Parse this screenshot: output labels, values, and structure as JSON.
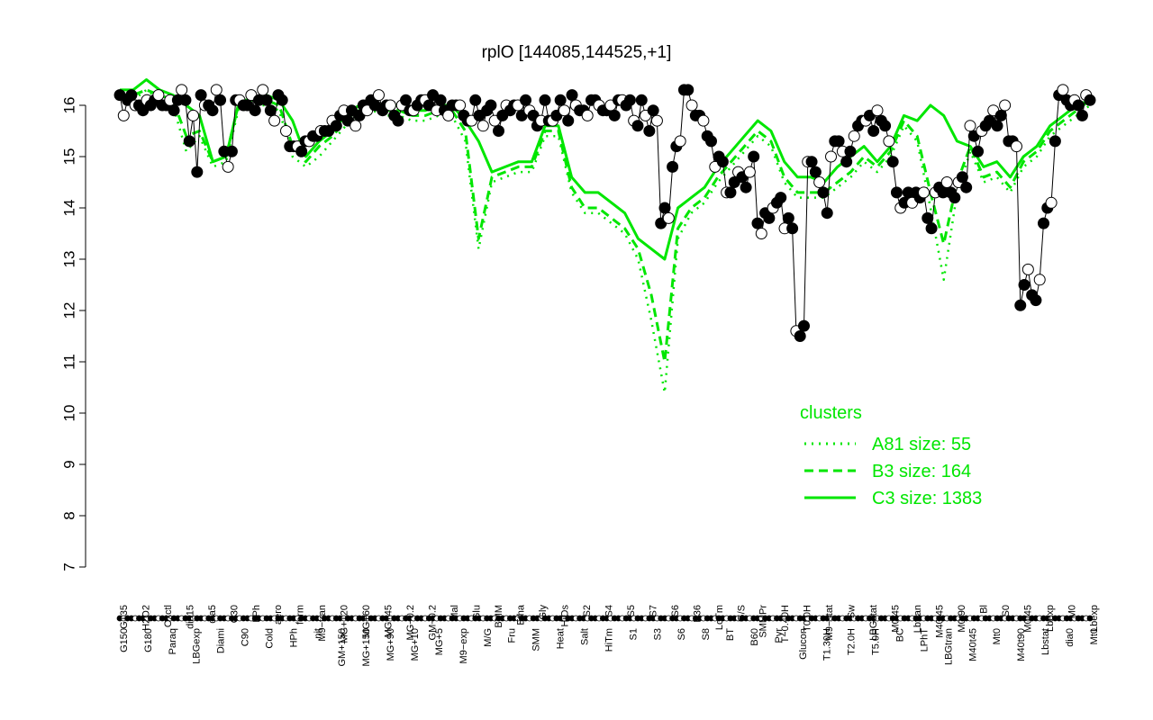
{
  "colors": {
    "axis": "#000000",
    "cluster": "#00e600",
    "point_fill_dark": "#000000",
    "point_fill_light": "#ffffff"
  },
  "chart_data": {
    "type": "line",
    "title": "rplO [144085,144525,+1]",
    "xlabel": "",
    "ylabel": "",
    "ylim": [
      7,
      16.5
    ],
    "yticks": [
      7,
      8,
      9,
      10,
      11,
      12,
      13,
      14,
      15,
      16
    ],
    "grid": false,
    "legend": {
      "title": "clusters",
      "position": "right",
      "entries": [
        {
          "label": "A81 size: 55",
          "style": "dotted"
        },
        {
          "label": "B3 size: 164",
          "style": "dashed"
        },
        {
          "label": "C3 size: 1383",
          "style": "solid"
        }
      ]
    },
    "x_tick_labels_top": [
      "G135",
      "H2O2",
      "Oxctl",
      "dia15",
      "dia5",
      "C30",
      "LPh",
      "aero",
      "ferm",
      "M9−tran",
      "MG+120",
      "MG+60",
      "MG+45",
      "MG−0.2",
      "GM−0.2",
      "Mal",
      "Glu",
      "BMM",
      "Etha",
      "Gly",
      "HiOs",
      "S2",
      "S4",
      "S5",
      "S7",
      "S6",
      "B36",
      "LoTm",
      "G/S",
      "SMMPr",
      "T−0.40H",
      "T0.0H",
      "M9−stat",
      "Sw",
      "LBGstat",
      "M0t45",
      "Lbtran",
      "M40t45",
      "M0t90",
      "Bl",
      "S0",
      "M0t45",
      "Lbexp",
      "M0",
      "Lbexp"
    ],
    "x_tick_labels_bottom": [
      "G150",
      "G180",
      "Paraq",
      "LBGexp",
      "Diami",
      "C90",
      "Cold",
      "HPh",
      "nit",
      "GM+150",
      "MG+150",
      "MG+90",
      "MG+10",
      "MG+5",
      "M9−exp",
      "M/G",
      "Fru",
      "SMM",
      "Heat",
      "Salt",
      "HiTm",
      "S1",
      "S3",
      "S6",
      "S8",
      "BT",
      "B60",
      "Pyr",
      "Glucon",
      "T1.30H",
      "T2.0H",
      "T5.0H",
      "BC",
      "LPhT",
      "LBGtran",
      "M40t45",
      "Mt0",
      "M40t90",
      "Lbstat",
      "dia0",
      "Mt0"
    ],
    "series": [
      {
        "name": "C3 size: 1383",
        "style": "solid",
        "values": [
          16.3,
          16.3,
          16.5,
          16.3,
          16.2,
          16.0,
          15.8,
          14.9,
          15.0,
          16.1,
          16.1,
          16.2,
          16.1,
          15.7,
          15.0,
          15.3,
          15.5,
          15.8,
          16.0,
          16.0,
          16.0,
          16.0,
          15.9,
          15.9,
          16.0,
          16.0,
          15.7,
          15.3,
          14.7,
          14.8,
          14.9,
          14.9,
          15.6,
          15.6,
          14.6,
          14.3,
          14.3,
          14.1,
          13.9,
          13.4,
          13.2,
          13.0,
          14.0,
          14.2,
          14.4,
          14.8,
          15.1,
          15.4,
          15.7,
          15.5,
          14.9,
          14.6,
          14.6,
          14.5,
          14.8,
          15.0,
          15.2,
          14.9,
          15.2,
          15.8,
          15.7,
          16.0,
          15.8,
          15.3,
          15.2,
          14.8,
          14.9,
          14.6,
          15.0,
          15.2,
          15.6,
          15.8,
          16.0,
          16.1
        ]
      },
      {
        "name": "B3 size: 164",
        "style": "dashed",
        "values": [
          16.2,
          16.2,
          16.3,
          16.2,
          16.1,
          15.4,
          15.5,
          14.9,
          15.0,
          16.1,
          16.1,
          16.1,
          16.0,
          15.2,
          14.9,
          15.2,
          15.4,
          15.7,
          15.9,
          16.0,
          15.9,
          15.9,
          15.8,
          15.8,
          15.9,
          15.9,
          15.5,
          13.4,
          14.6,
          14.7,
          14.8,
          14.8,
          15.5,
          15.5,
          14.4,
          14.0,
          14.0,
          13.8,
          13.6,
          13.2,
          12.3,
          11.0,
          13.6,
          14.0,
          14.2,
          14.6,
          14.9,
          15.2,
          15.5,
          15.3,
          14.6,
          14.3,
          14.3,
          14.3,
          14.5,
          14.7,
          15.0,
          14.8,
          15.1,
          15.7,
          15.4,
          14.3,
          13.3,
          14.5,
          15.2,
          14.6,
          14.7,
          14.4,
          14.9,
          15.1,
          15.5,
          15.7,
          15.9,
          16.1
        ]
      },
      {
        "name": "A81 size: 55",
        "style": "dotted",
        "values": [
          16.2,
          16.1,
          16.3,
          16.1,
          16.0,
          15.1,
          15.4,
          14.8,
          14.9,
          16.0,
          16.0,
          16.0,
          15.9,
          15.0,
          14.8,
          15.0,
          15.3,
          15.6,
          15.8,
          15.9,
          15.8,
          15.8,
          15.7,
          15.7,
          15.8,
          15.8,
          15.3,
          13.2,
          14.5,
          14.6,
          14.7,
          14.7,
          15.4,
          15.4,
          14.3,
          13.9,
          13.9,
          13.7,
          13.5,
          13.0,
          11.8,
          10.4,
          13.4,
          13.9,
          14.1,
          14.5,
          14.8,
          15.1,
          15.4,
          15.2,
          14.5,
          14.2,
          14.2,
          14.2,
          14.4,
          14.6,
          14.9,
          14.7,
          15.0,
          15.6,
          15.3,
          14.0,
          12.6,
          14.3,
          15.1,
          14.5,
          14.6,
          14.3,
          14.8,
          15.0,
          15.4,
          15.6,
          15.8,
          16.0
        ]
      }
    ],
    "points": [
      16.2,
      15.8,
      16.1,
      16.2,
      16.0,
      16.0,
      15.9,
      16.1,
      16.0,
      16.1,
      16.2,
      16.0,
      16.0,
      16.1,
      15.9,
      16.1,
      16.3,
      16.1,
      15.3,
      15.8,
      14.7,
      16.2,
      16.0,
      16.0,
      15.9,
      16.3,
      16.1,
      15.1,
      14.8,
      15.1,
      16.1,
      16.1,
      16.0,
      16.0,
      16.2,
      15.9,
      16.1,
      16.3,
      16.1,
      15.9,
      15.7,
      16.2,
      16.1,
      15.5,
      15.2,
      15.2,
      15.2,
      15.1,
      15.3,
      15.3,
      15.4,
      15.4,
      15.5,
      15.5,
      15.5,
      15.7,
      15.6,
      15.8,
      15.9,
      15.7,
      15.9,
      15.6,
      15.8,
      16.0,
      15.9,
      16.1,
      16.0,
      16.2,
      15.9,
      16.0,
      16.0,
      15.8,
      15.7,
      16.0,
      16.1,
      15.9,
      15.9,
      16.0,
      16.1,
      16.1,
      16.0,
      16.2,
      15.9,
      16.1,
      15.9,
      15.8,
      16.0,
      16.0,
      16.0,
      15.8,
      15.7,
      15.7,
      16.1,
      15.8,
      15.6,
      15.9,
      16.0,
      15.7,
      15.5,
      15.8,
      16.0,
      15.9,
      16.0,
      16.0,
      15.8,
      16.1,
      15.9,
      15.8,
      15.6,
      15.7,
      16.1,
      15.7,
      15.7,
      15.8,
      16.1,
      15.9,
      15.7,
      16.2,
      16.0,
      15.9,
      15.9,
      15.8,
      16.1,
      16.1,
      16.0,
      15.9,
      15.9,
      16.0,
      15.8,
      16.1,
      16.1,
      16.0,
      16.1,
      15.7,
      15.6,
      16.1,
      15.8,
      15.5,
      15.9,
      15.7,
      13.7,
      14.0,
      13.8,
      14.8,
      15.2,
      15.3,
      16.3,
      16.3,
      16.0,
      15.8,
      15.8,
      15.7,
      15.4,
      15.3,
      14.8,
      15.0,
      14.9,
      14.3,
      14.3,
      14.5,
      14.7,
      14.6,
      14.4,
      14.7,
      15.0,
      13.7,
      13.5,
      13.9,
      13.8,
      14.0,
      14.1,
      14.2,
      13.6,
      13.8,
      13.6,
      11.6,
      11.5,
      11.7,
      14.9,
      14.9,
      14.7,
      14.5,
      14.3,
      13.9,
      15.0,
      15.3,
      15.3,
      15.1,
      14.9,
      15.1,
      15.4,
      15.6,
      15.7,
      15.7,
      15.8,
      15.5,
      15.9,
      15.7,
      15.6,
      15.3,
      14.9,
      14.3,
      14.0,
      14.1,
      14.3,
      14.1,
      14.3,
      14.2,
      14.3,
      13.8,
      13.6,
      14.3,
      14.4,
      14.3,
      14.5,
      14.3,
      14.2,
      14.5,
      14.6,
      14.4,
      15.6,
      15.4,
      15.1,
      15.5,
      15.6,
      15.7,
      15.9,
      15.6,
      15.8,
      16.0,
      15.3,
      15.3,
      15.2,
      12.1,
      12.5,
      12.8,
      12.3,
      12.2,
      12.6,
      13.7,
      14.0,
      14.1,
      15.3,
      16.2,
      16.3,
      16.1,
      16.0,
      16.1,
      16.0,
      15.8,
      16.2,
      16.1
    ]
  }
}
